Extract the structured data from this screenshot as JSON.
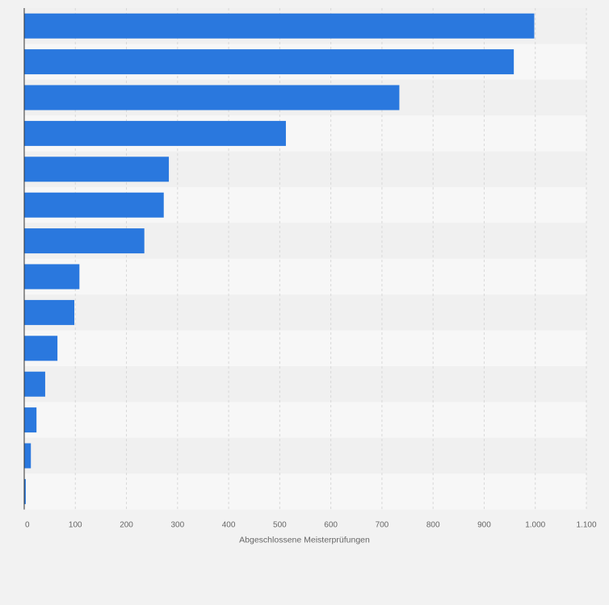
{
  "chart_data": {
    "type": "bar",
    "orientation": "horizontal",
    "categories": [
      "",
      "",
      "",
      "",
      "",
      "",
      "",
      "",
      "",
      "",
      "",
      "",
      "",
      ""
    ],
    "values": [
      998,
      958,
      734,
      512,
      283,
      273,
      235,
      108,
      98,
      65,
      41,
      24,
      13,
      3
    ],
    "xlabel": "Abgeschlossene Meisterprüfungen",
    "ylabel": "",
    "xlim": [
      0,
      1100
    ],
    "x_ticks": [
      0,
      100,
      200,
      300,
      400,
      500,
      600,
      700,
      800,
      900,
      1000,
      1100
    ],
    "x_tick_labels": [
      "0",
      "100",
      "200",
      "300",
      "400",
      "500",
      "600",
      "700",
      "800",
      "900",
      "1.000",
      "1.100"
    ],
    "grid": true,
    "legend": "none"
  },
  "colors": {
    "bar": "#2a78de",
    "background": "#f2f2f2",
    "band_light": "#f7f7f7",
    "band_dark": "#f0f0f0",
    "grid": "#d8d8d8",
    "axis": "#333333"
  }
}
